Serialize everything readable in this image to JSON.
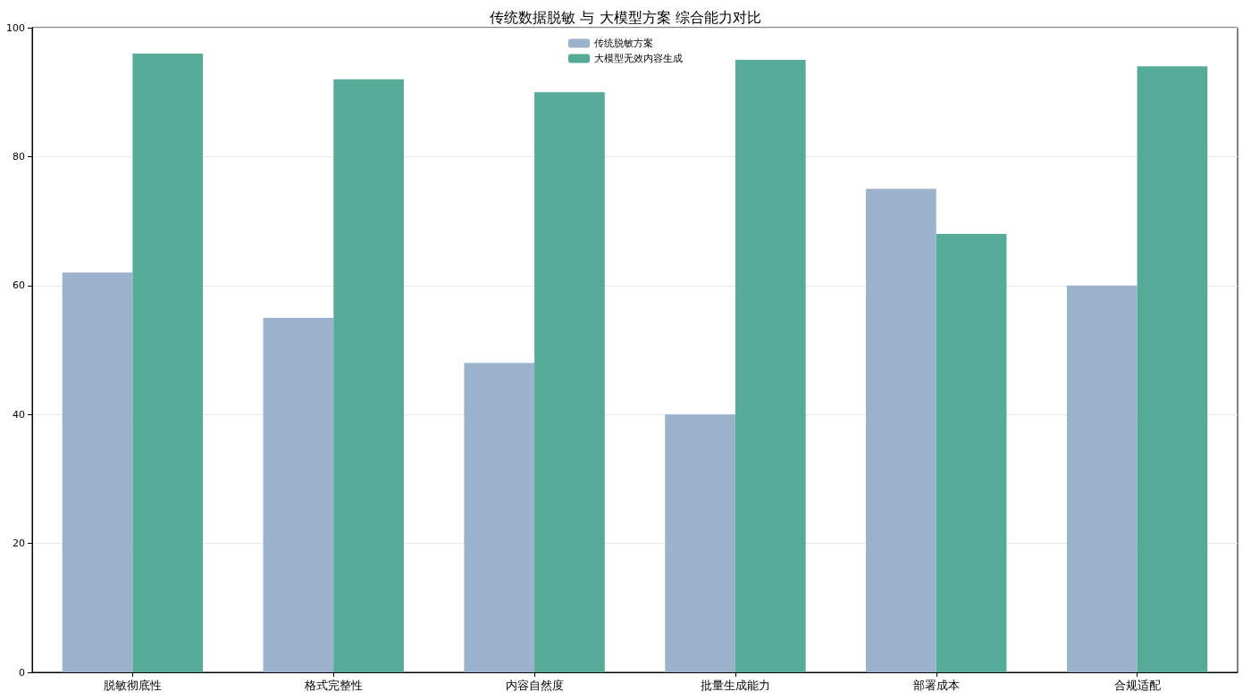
{
  "chart_data": {
    "type": "bar",
    "title": "传统数据脱敏 与 大模型方案 综合能力对比",
    "categories": [
      "脱敏彻底性",
      "格式完整性",
      "内容自然度",
      "批量生成能力",
      "部署成本",
      "合规适配"
    ],
    "series": [
      {
        "name": "传统脱敏方案",
        "color": "#9ab2cc",
        "values": [
          62,
          55,
          48,
          40,
          75,
          60
        ]
      },
      {
        "name": "大模型无效内容生成",
        "color": "#56ab98",
        "values": [
          96,
          92,
          90,
          95,
          68,
          94
        ]
      }
    ],
    "ylim": [
      0,
      100
    ],
    "yticks": [
      0,
      20,
      40,
      60,
      80,
      100
    ],
    "grid": "y",
    "legend": "top"
  }
}
